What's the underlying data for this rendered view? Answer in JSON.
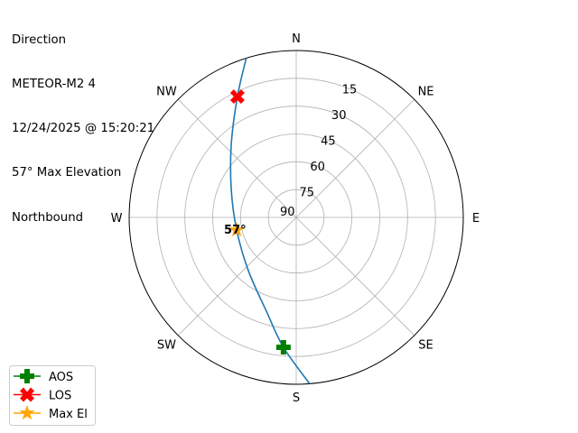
{
  "chart_data": {
    "type": "polar",
    "title_lines": [
      "Direction",
      "METEOR-M2 4",
      "12/24/2025 @ 15:20:21",
      "57° Max Elevation",
      "Northbound"
    ],
    "theta_direction": "clockwise",
    "theta_zero": "N",
    "direction_labels": [
      {
        "label": "N",
        "az": 0
      },
      {
        "label": "NE",
        "az": 45
      },
      {
        "label": "E",
        "az": 90
      },
      {
        "label": "SE",
        "az": 135
      },
      {
        "label": "S",
        "az": 180
      },
      {
        "label": "SW",
        "az": 225
      },
      {
        "label": "W",
        "az": 270
      },
      {
        "label": "NW",
        "az": 315
      }
    ],
    "radial_ticks": [
      "15",
      "30",
      "45",
      "60",
      "75",
      "90"
    ],
    "radial_tick_values": [
      15,
      30,
      45,
      60,
      75,
      90
    ],
    "elevation_range": [
      0,
      90
    ],
    "grid": true,
    "track": {
      "color": "#1f77b4",
      "points": [
        {
          "az": 175.4,
          "el": 0
        },
        {
          "az": 185.6,
          "el": 19.6
        },
        {
          "az": 197.6,
          "el": 36.9
        },
        {
          "az": 221.9,
          "el": 51.4
        },
        {
          "az": 258.0,
          "el": 57.2
        },
        {
          "az": 293.3,
          "el": 51.9
        },
        {
          "az": 318.4,
          "el": 37.3
        },
        {
          "az": 334.1,
          "el": 17.5
        },
        {
          "az": 342.6,
          "el": 0
        }
      ]
    },
    "markers": [
      {
        "name": "AOS",
        "az": 185.6,
        "el": 19.6,
        "color": "#008000",
        "shape": "plus"
      },
      {
        "name": "LOS",
        "az": 334.1,
        "el": 17.5,
        "color": "#ff0000",
        "shape": "x"
      },
      {
        "name": "Max El",
        "az": 258.0,
        "el": 57.2,
        "color": "#ffa500",
        "shape": "star"
      }
    ],
    "annotation": {
      "text": "57°",
      "az": 258.0,
      "el": 57.2
    },
    "legend": {
      "placement": "lower-left",
      "entries": [
        "AOS",
        "LOS",
        "Max El"
      ]
    }
  }
}
